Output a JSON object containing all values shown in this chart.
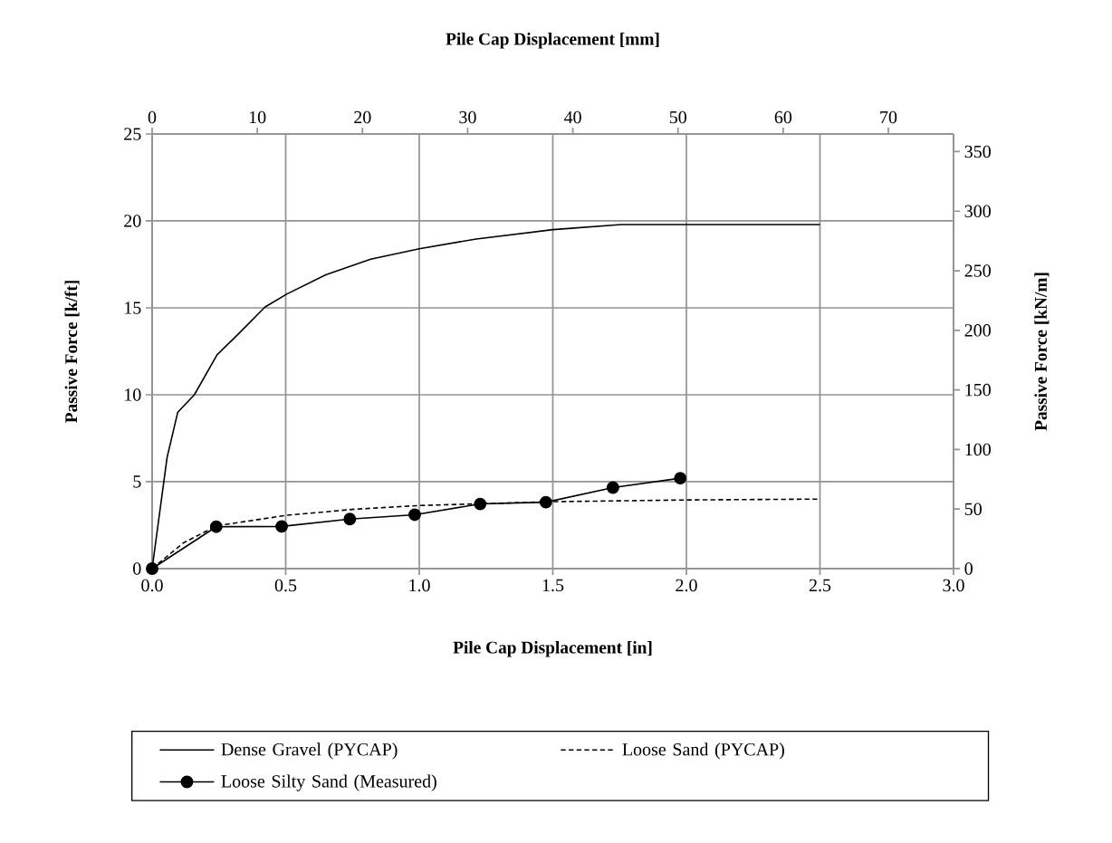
{
  "chart_data": {
    "type": "line",
    "xlabel": "Pile Cap Displacement [in]",
    "ylabel": "Passive Force [k/ft]",
    "x2label": "Pile Cap Displacement [mm]",
    "y2label": "Passive Force [kN/m]",
    "xlim": [
      0,
      3
    ],
    "ylim": [
      0,
      25
    ],
    "x2lim": [
      0,
      76.2
    ],
    "y2lim": [
      0,
      364.8
    ],
    "xticks": [
      {
        "value": 0,
        "label": "0.0"
      },
      0.5,
      {
        "value": 1,
        "label": "1.0"
      },
      1.5,
      {
        "value": 2,
        "label": "2.0"
      },
      2.5,
      {
        "value": 3,
        "label": "3.0"
      }
    ],
    "yticks": [
      0,
      5,
      10,
      15,
      20,
      25
    ],
    "x2ticks": [
      0,
      10,
      20,
      30,
      40,
      50,
      60,
      70
    ],
    "y2ticks": [
      0,
      50,
      100,
      150,
      200,
      250,
      300,
      350
    ],
    "grid": true,
    "legend": "bottom",
    "series": [
      {
        "name": "Dense Gravel (PYCAP)",
        "color": "#000000",
        "line_style": "solid",
        "x": [
          0,
          0.056,
          0.096,
          0.158,
          0.243,
          0.31,
          0.423,
          0.505,
          0.65,
          0.818,
          1.0,
          1.213,
          1.5,
          1.756,
          2.5
        ],
        "values": [
          0,
          6.4,
          9.0,
          10.0,
          12.3,
          13.3,
          15.05,
          15.8,
          16.9,
          17.8,
          18.4,
          18.96,
          19.5,
          19.79,
          19.79
        ]
      },
      {
        "name": "Loose Sand (PYCAP)",
        "color": "#000000",
        "line_style": "dashed",
        "x": [
          0,
          0.119,
          0.243,
          0.505,
          0.76,
          1.0,
          1.5,
          2.0,
          2.5
        ],
        "values": [
          0,
          1.5,
          2.47,
          3.07,
          3.42,
          3.63,
          3.85,
          3.95,
          4.0
        ]
      },
      {
        "name": "Loose Silty Sand (Measured)",
        "color": "#000000",
        "line_style": "solid",
        "marker": "circle",
        "x": [
          0,
          0.24,
          0.485,
          0.74,
          0.983,
          1.228,
          1.474,
          1.725,
          1.977
        ],
        "values": [
          0,
          2.41,
          2.43,
          2.85,
          3.1,
          3.72,
          3.82,
          4.66,
          5.2
        ]
      }
    ]
  }
}
